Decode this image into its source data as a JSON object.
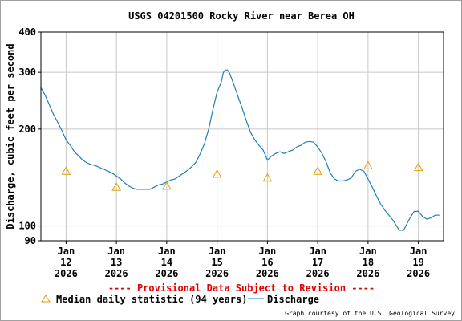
{
  "chart_data": {
    "type": "line",
    "title": "USGS 04201500 Rocky River near Berea OH",
    "ylabel": "Discharge, cubic feet per second",
    "xlabel": "",
    "yscale": "log",
    "ylim": [
      90,
      400
    ],
    "xlim": [
      "2026-01-11T12:00",
      "2026-01-19T12:00"
    ],
    "y_ticks": [
      90,
      100,
      200,
      300,
      400
    ],
    "x_ticks": [
      {
        "date": "2026-01-12",
        "label": [
          "Jan",
          "12",
          "2026"
        ]
      },
      {
        "date": "2026-01-13",
        "label": [
          "Jan",
          "13",
          "2026"
        ]
      },
      {
        "date": "2026-01-14",
        "label": [
          "Jan",
          "14",
          "2026"
        ]
      },
      {
        "date": "2026-01-15",
        "label": [
          "Jan",
          "15",
          "2026"
        ]
      },
      {
        "date": "2026-01-16",
        "label": [
          "Jan",
          "16",
          "2026"
        ]
      },
      {
        "date": "2026-01-17",
        "label": [
          "Jan",
          "17",
          "2026"
        ]
      },
      {
        "date": "2026-01-18",
        "label": [
          "Jan",
          "18",
          "2026"
        ]
      },
      {
        "date": "2026-01-19",
        "label": [
          "Jan",
          "19",
          "2026"
        ]
      }
    ],
    "grid": true,
    "notice": "---- Provisional Data Subject to Revision ----",
    "credit": "Graph courtesy of the U.S. Geological Survey",
    "series": [
      {
        "name": "Discharge",
        "kind": "line",
        "color": "#1f80b5",
        "points": [
          [
            "2026-01-11T12:00",
            269
          ],
          [
            "2026-01-11T14:00",
            255
          ],
          [
            "2026-01-11T16:00",
            238
          ],
          [
            "2026-01-11T18:00",
            222
          ],
          [
            "2026-01-11T20:00",
            210
          ],
          [
            "2026-01-11T22:00",
            198
          ],
          [
            "2026-01-12T00:00",
            185
          ],
          [
            "2026-01-12T02:00",
            178
          ],
          [
            "2026-01-12T04:00",
            170
          ],
          [
            "2026-01-12T06:00",
            165
          ],
          [
            "2026-01-12T08:00",
            160
          ],
          [
            "2026-01-12T10:00",
            157
          ],
          [
            "2026-01-12T12:00",
            155
          ],
          [
            "2026-01-12T14:00",
            154
          ],
          [
            "2026-01-12T16:00",
            152
          ],
          [
            "2026-01-12T18:00",
            150
          ],
          [
            "2026-01-12T20:00",
            148
          ],
          [
            "2026-01-12T22:00",
            146
          ],
          [
            "2026-01-13T00:00",
            143
          ],
          [
            "2026-01-13T02:00",
            140
          ],
          [
            "2026-01-13T04:00",
            136
          ],
          [
            "2026-01-13T06:00",
            133
          ],
          [
            "2026-01-13T08:00",
            131
          ],
          [
            "2026-01-13T10:00",
            130
          ],
          [
            "2026-01-13T12:00",
            130
          ],
          [
            "2026-01-13T14:00",
            130
          ],
          [
            "2026-01-13T16:00",
            130
          ],
          [
            "2026-01-13T18:00",
            132
          ],
          [
            "2026-01-13T20:00",
            134
          ],
          [
            "2026-01-13T22:00",
            135
          ],
          [
            "2026-01-14T00:00",
            137
          ],
          [
            "2026-01-14T02:00",
            139
          ],
          [
            "2026-01-14T04:00",
            140
          ],
          [
            "2026-01-14T06:00",
            143
          ],
          [
            "2026-01-14T08:00",
            146
          ],
          [
            "2026-01-14T10:00",
            149
          ],
          [
            "2026-01-14T12:00",
            153
          ],
          [
            "2026-01-14T14:00",
            158
          ],
          [
            "2026-01-14T16:00",
            168
          ],
          [
            "2026-01-14T18:00",
            180
          ],
          [
            "2026-01-14T20:00",
            200
          ],
          [
            "2026-01-14T22:00",
            230
          ],
          [
            "2026-01-15T00:00",
            260
          ],
          [
            "2026-01-15T02:00",
            280
          ],
          [
            "2026-01-15T03:00",
            300
          ],
          [
            "2026-01-15T04:00",
            305
          ],
          [
            "2026-01-15T05:00",
            305
          ],
          [
            "2026-01-15T06:00",
            298
          ],
          [
            "2026-01-15T08:00",
            275
          ],
          [
            "2026-01-15T10:00",
            252
          ],
          [
            "2026-01-15T12:00",
            232
          ],
          [
            "2026-01-15T14:00",
            212
          ],
          [
            "2026-01-15T16:00",
            195
          ],
          [
            "2026-01-15T18:00",
            185
          ],
          [
            "2026-01-15T20:00",
            178
          ],
          [
            "2026-01-15T22:00",
            172
          ],
          [
            "2026-01-16T00:00",
            160
          ],
          [
            "2026-01-16T02:00",
            165
          ],
          [
            "2026-01-16T04:00",
            168
          ],
          [
            "2026-01-16T06:00",
            170
          ],
          [
            "2026-01-16T08:00",
            168
          ],
          [
            "2026-01-16T10:00",
            170
          ],
          [
            "2026-01-16T12:00",
            172
          ],
          [
            "2026-01-16T14:00",
            176
          ],
          [
            "2026-01-16T16:00",
            178
          ],
          [
            "2026-01-16T18:00",
            182
          ],
          [
            "2026-01-16T20:00",
            183
          ],
          [
            "2026-01-16T22:00",
            182
          ],
          [
            "2026-01-17T00:00",
            176
          ],
          [
            "2026-01-17T02:00",
            168
          ],
          [
            "2026-01-17T04:00",
            158
          ],
          [
            "2026-01-17T06:00",
            146
          ],
          [
            "2026-01-17T08:00",
            140
          ],
          [
            "2026-01-17T10:00",
            138
          ],
          [
            "2026-01-17T12:00",
            138
          ],
          [
            "2026-01-17T14:00",
            139
          ],
          [
            "2026-01-17T16:00",
            141
          ],
          [
            "2026-01-17T18:00",
            148
          ],
          [
            "2026-01-17T20:00",
            150
          ],
          [
            "2026-01-17T22:00",
            148
          ],
          [
            "2026-01-18T00:00",
            140
          ],
          [
            "2026-01-18T02:00",
            132
          ],
          [
            "2026-01-18T04:00",
            124
          ],
          [
            "2026-01-18T06:00",
            117
          ],
          [
            "2026-01-18T08:00",
            112
          ],
          [
            "2026-01-18T10:00",
            108
          ],
          [
            "2026-01-18T12:00",
            104
          ],
          [
            "2026-01-18T14:00",
            99
          ],
          [
            "2026-01-18T15:00",
            97
          ],
          [
            "2026-01-18T17:00",
            97
          ],
          [
            "2026-01-18T18:00",
            100
          ],
          [
            "2026-01-18T20:00",
            106
          ],
          [
            "2026-01-18T22:00",
            111
          ],
          [
            "2026-01-19T00:00",
            111
          ],
          [
            "2026-01-19T02:00",
            107
          ],
          [
            "2026-01-19T04:00",
            105
          ],
          [
            "2026-01-19T06:00",
            106
          ],
          [
            "2026-01-19T08:00",
            108
          ],
          [
            "2026-01-19T10:00",
            108
          ]
        ]
      },
      {
        "name": "Median daily statistic (94 years)",
        "kind": "marker",
        "color": "#e0a000",
        "points": [
          [
            "2026-01-12T00:00",
            148
          ],
          [
            "2026-01-13T00:00",
            132
          ],
          [
            "2026-01-14T00:00",
            133
          ],
          [
            "2026-01-15T00:00",
            145
          ],
          [
            "2026-01-16T00:00",
            141
          ],
          [
            "2026-01-17T00:00",
            148
          ],
          [
            "2026-01-18T00:00",
            154
          ],
          [
            "2026-01-19T00:00",
            152
          ]
        ]
      }
    ],
    "legend": [
      {
        "label": "Median daily statistic (94 years)",
        "symbol": "triangle"
      },
      {
        "label": "Discharge",
        "symbol": "line"
      }
    ]
  }
}
